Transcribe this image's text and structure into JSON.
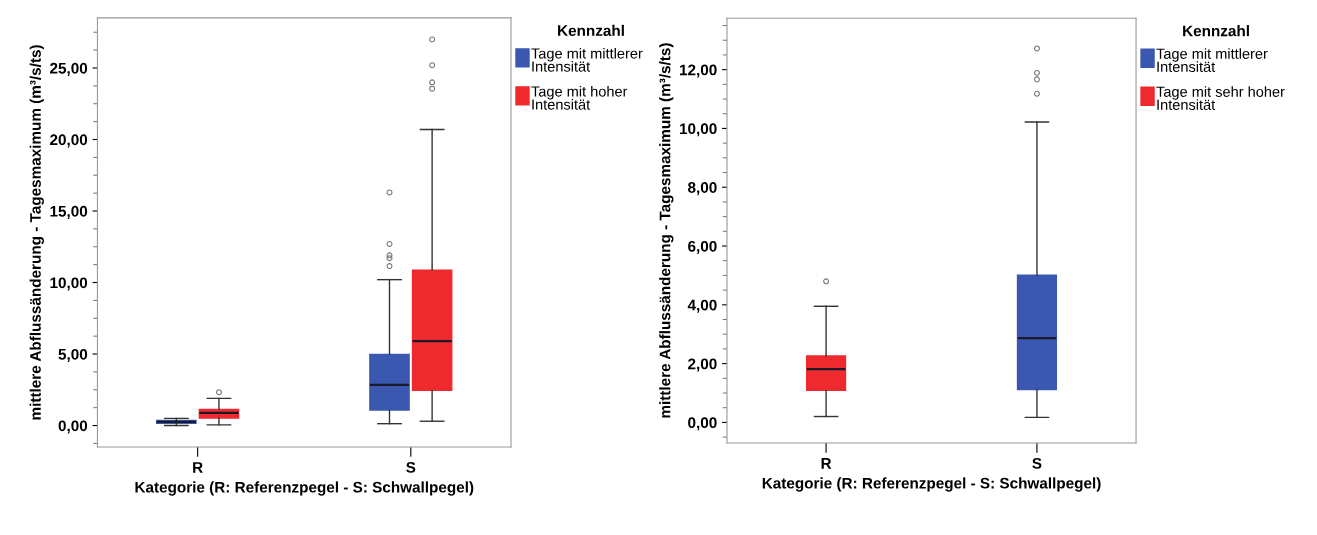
{
  "chart_data": [
    {
      "type": "box",
      "categories": [
        "R",
        "S"
      ],
      "xlabel": "Kategorie (R: Referenzpegel - S: Schwallpegel)",
      "ylabel": "mittlere Abflussänderung - Tagesmaximum (m³/s/ts)",
      "legend_title": "Kennzahl",
      "legend": "right",
      "ylim": [
        -1.5,
        28.5
      ],
      "yticks": [
        {
          "value": 0,
          "label": "0,00"
        },
        {
          "value": 5,
          "label": "5,00"
        },
        {
          "value": 10,
          "label": "10,00"
        },
        {
          "value": 15,
          "label": "15,00"
        },
        {
          "value": 20,
          "label": "20,00"
        },
        {
          "value": 25,
          "label": "25,00"
        }
      ],
      "series": [
        {
          "name": "Tage mit mittlerer Intensität",
          "color": "#3a58b0",
          "boxes": [
            {
              "low": 0.0,
              "q1": 0.16,
              "median": 0.25,
              "q3": 0.35,
              "high": 0.5
            },
            {
              "low": 0.13,
              "q1": 1.09,
              "median": 2.84,
              "q3": 4.97,
              "high": 10.2,
              "outliers": [
                11.15,
                11.7,
                11.9,
                12.7,
                16.3
              ]
            }
          ]
        },
        {
          "name": "Tage mit hoher Intensität",
          "color": "#ee2a2e",
          "boxes": [
            {
              "low": 0.05,
              "q1": 0.53,
              "median": 0.88,
              "q3": 1.13,
              "high": 1.9,
              "outliers": [
                2.33
              ]
            },
            {
              "low": 0.3,
              "q1": 2.46,
              "median": 5.9,
              "q3": 10.87,
              "high": 20.7,
              "outliers": [
                23.55,
                24.0,
                25.2,
                27.0
              ]
            }
          ]
        }
      ]
    },
    {
      "type": "box",
      "categories": [
        "R",
        "S"
      ],
      "xlabel": "Kategorie (R: Referenzpegel - S: Schwallpegel)",
      "ylabel": "mittlere Abflussänderung - Tagesmaximum (m³/s/ts)",
      "legend_title": "Kennzahl",
      "legend": "right",
      "ylim": [
        -0.7,
        13.75
      ],
      "yticks": [
        {
          "value": 0,
          "label": "0,00"
        },
        {
          "value": 2,
          "label": "2,00"
        },
        {
          "value": 4,
          "label": "4,00"
        },
        {
          "value": 6,
          "label": "6,00"
        },
        {
          "value": 8,
          "label": "8,00"
        },
        {
          "value": 10,
          "label": "10,00"
        },
        {
          "value": 12,
          "label": "12,00"
        }
      ],
      "series": [
        {
          "name": "Tage mit mittlerer Intensität",
          "color": "#3a58b0",
          "boxes": [
            null,
            {
              "low": 0.17,
              "q1": 1.12,
              "median": 2.87,
              "q3": 5.01,
              "high": 10.22,
              "outliers": [
                11.18,
                11.67,
                11.89,
                12.72
              ]
            }
          ]
        },
        {
          "name": "Tage mit sehr hoher Intensität",
          "color": "#ee2a2e",
          "boxes": [
            {
              "low": 0.2,
              "q1": 1.09,
              "median": 1.81,
              "q3": 2.26,
              "high": 3.95,
              "outliers": [
                4.8
              ]
            },
            null
          ]
        }
      ]
    }
  ]
}
